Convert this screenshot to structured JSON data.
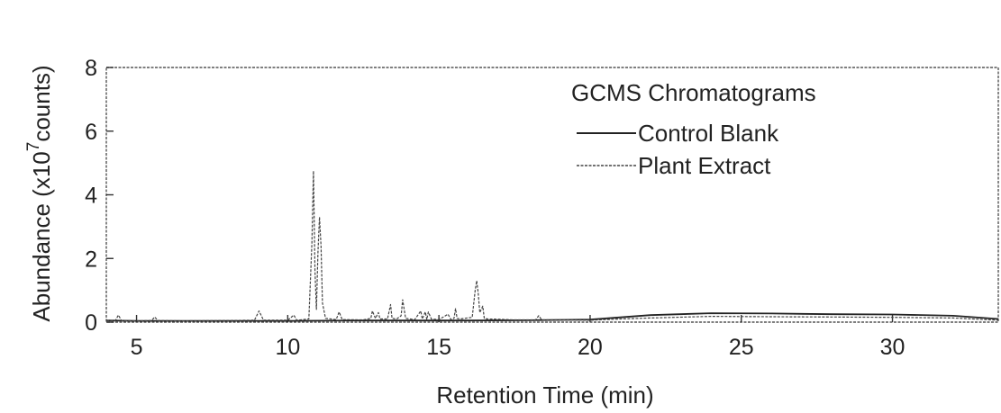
{
  "chart_data": {
    "type": "line",
    "title": "",
    "xlabel": "Retention Time (min)",
    "ylabel_prefix": "Abundance (x10",
    "ylabel_exp": "7",
    "ylabel_suffix": "counts)",
    "xlim": [
      4,
      33.5
    ],
    "ylim": [
      0,
      8
    ],
    "xticks": [
      5,
      10,
      15,
      20,
      25,
      30
    ],
    "yticks": [
      0,
      2,
      4,
      6,
      8
    ],
    "legend": {
      "title": "GCMS Chromatograms",
      "position": "top-right"
    },
    "series": [
      {
        "name": "Control Blank",
        "color": "#222222",
        "x": [
          4.0,
          5.0,
          6.0,
          8.0,
          10.0,
          12.0,
          14.0,
          16.0,
          18.0,
          20.0,
          21.0,
          22.0,
          24.0,
          26.0,
          28.0,
          30.0,
          32.0,
          33.5
        ],
        "y": [
          0.05,
          0.04,
          0.04,
          0.04,
          0.04,
          0.05,
          0.05,
          0.05,
          0.06,
          0.08,
          0.15,
          0.22,
          0.28,
          0.27,
          0.25,
          0.24,
          0.2,
          0.1
        ]
      },
      {
        "name": "Plant Extract",
        "color": "#444444",
        "x": [
          4.0,
          4.3,
          4.4,
          4.5,
          5.0,
          5.5,
          5.6,
          5.7,
          6.5,
          8.0,
          8.9,
          9.05,
          9.2,
          10.0,
          10.2,
          10.3,
          10.7,
          10.8,
          10.85,
          10.9,
          10.95,
          11.0,
          11.05,
          11.1,
          11.15,
          11.25,
          11.6,
          11.7,
          11.8,
          12.5,
          12.75,
          12.8,
          12.9,
          13.0,
          13.05,
          13.3,
          13.4,
          13.45,
          13.6,
          13.75,
          13.8,
          13.9,
          14.2,
          14.4,
          14.45,
          14.55,
          14.6,
          14.65,
          14.75,
          15.0,
          15.3,
          15.4,
          15.5,
          15.55,
          15.6,
          15.7,
          16.1,
          16.2,
          16.25,
          16.3,
          16.35,
          16.45,
          16.5,
          16.6,
          17.0,
          17.5,
          18.2,
          18.3,
          18.4,
          19.0,
          20.0,
          21.0,
          22.0,
          24.0,
          26.0,
          28.0,
          30.0,
          32.0,
          33.5
        ],
        "y": [
          0.05,
          0.05,
          0.22,
          0.05,
          0.04,
          0.05,
          0.16,
          0.05,
          0.04,
          0.05,
          0.06,
          0.35,
          0.06,
          0.06,
          0.22,
          0.06,
          0.1,
          2.5,
          4.75,
          1.6,
          0.4,
          2.2,
          3.3,
          2.4,
          0.6,
          0.12,
          0.08,
          0.32,
          0.08,
          0.07,
          0.12,
          0.35,
          0.12,
          0.3,
          0.1,
          0.1,
          0.55,
          0.12,
          0.1,
          0.2,
          0.7,
          0.12,
          0.08,
          0.35,
          0.1,
          0.32,
          0.08,
          0.32,
          0.1,
          0.08,
          0.25,
          0.08,
          0.12,
          0.42,
          0.12,
          0.1,
          0.15,
          1.0,
          1.3,
          0.9,
          0.3,
          0.5,
          0.12,
          0.1,
          0.09,
          0.07,
          0.07,
          0.2,
          0.07,
          0.07,
          0.06,
          0.1,
          0.13,
          0.18,
          0.17,
          0.16,
          0.15,
          0.13,
          0.06
        ]
      }
    ]
  }
}
